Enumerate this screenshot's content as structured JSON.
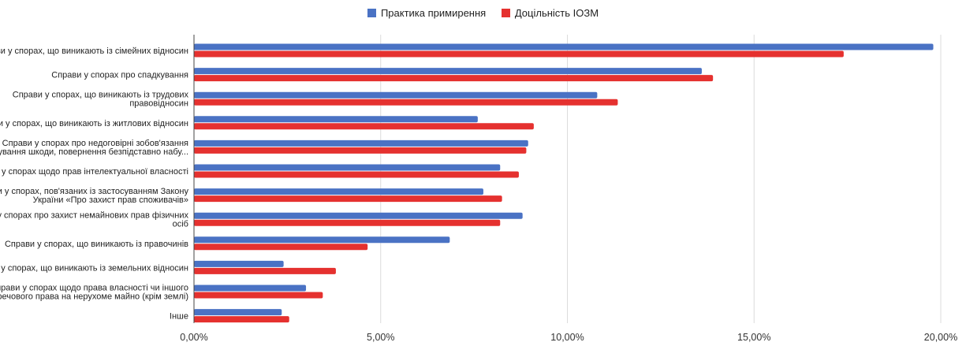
{
  "chart_data": {
    "type": "bar",
    "orientation": "horizontal",
    "legend_position": "top-center",
    "grid": true,
    "xlim": [
      0,
      20
    ],
    "x_ticks": [
      "0,00%",
      "5,00%",
      "10,00%",
      "15,00%",
      "20,00%"
    ],
    "categories": [
      [
        "Справи у спорах, що виникають  із сімейних відносин"
      ],
      [
        "Справи у спорах про спадкування"
      ],
      [
        "Справи у спорах, що виникають із трудових",
        "правовідносин"
      ],
      [
        "Справи у спорах, що виникають із житлових відносин"
      ],
      [
        "Справи у спорах про недоговірні зобов'язання",
        "(відшкодування шкоди, повернення безпідставно набу..."
      ],
      [
        "Справи у спорах щодо прав інтелектуальної власності"
      ],
      [
        "Справи у спорах, пов'язаних із застосуванням Закону",
        "України «Про захист прав споживачів»"
      ],
      [
        "Справи у спорах про захист немайнових прав фізичних",
        "осіб"
      ],
      [
        "Справи у спорах, що виникають із правочинів"
      ],
      [
        "Справи у спорах, що виникають із земельних відносин"
      ],
      [
        "Справи у спорах щодо права власності чи іншого",
        "речового права на нерухоме майно (крім землі)"
      ],
      [
        "Інше"
      ]
    ],
    "series": [
      {
        "name": "Практика примирення",
        "color": "#4a72c4",
        "values": [
          19.8,
          13.6,
          10.8,
          7.6,
          8.95,
          8.2,
          7.75,
          8.8,
          6.85,
          2.4,
          3.0,
          2.35
        ]
      },
      {
        "name": "Доцільність ІОЗМ",
        "color": "#e5312f",
        "values": [
          17.4,
          13.9,
          11.35,
          9.1,
          8.9,
          8.7,
          8.25,
          8.2,
          4.65,
          3.8,
          3.45,
          2.55
        ]
      }
    ]
  }
}
